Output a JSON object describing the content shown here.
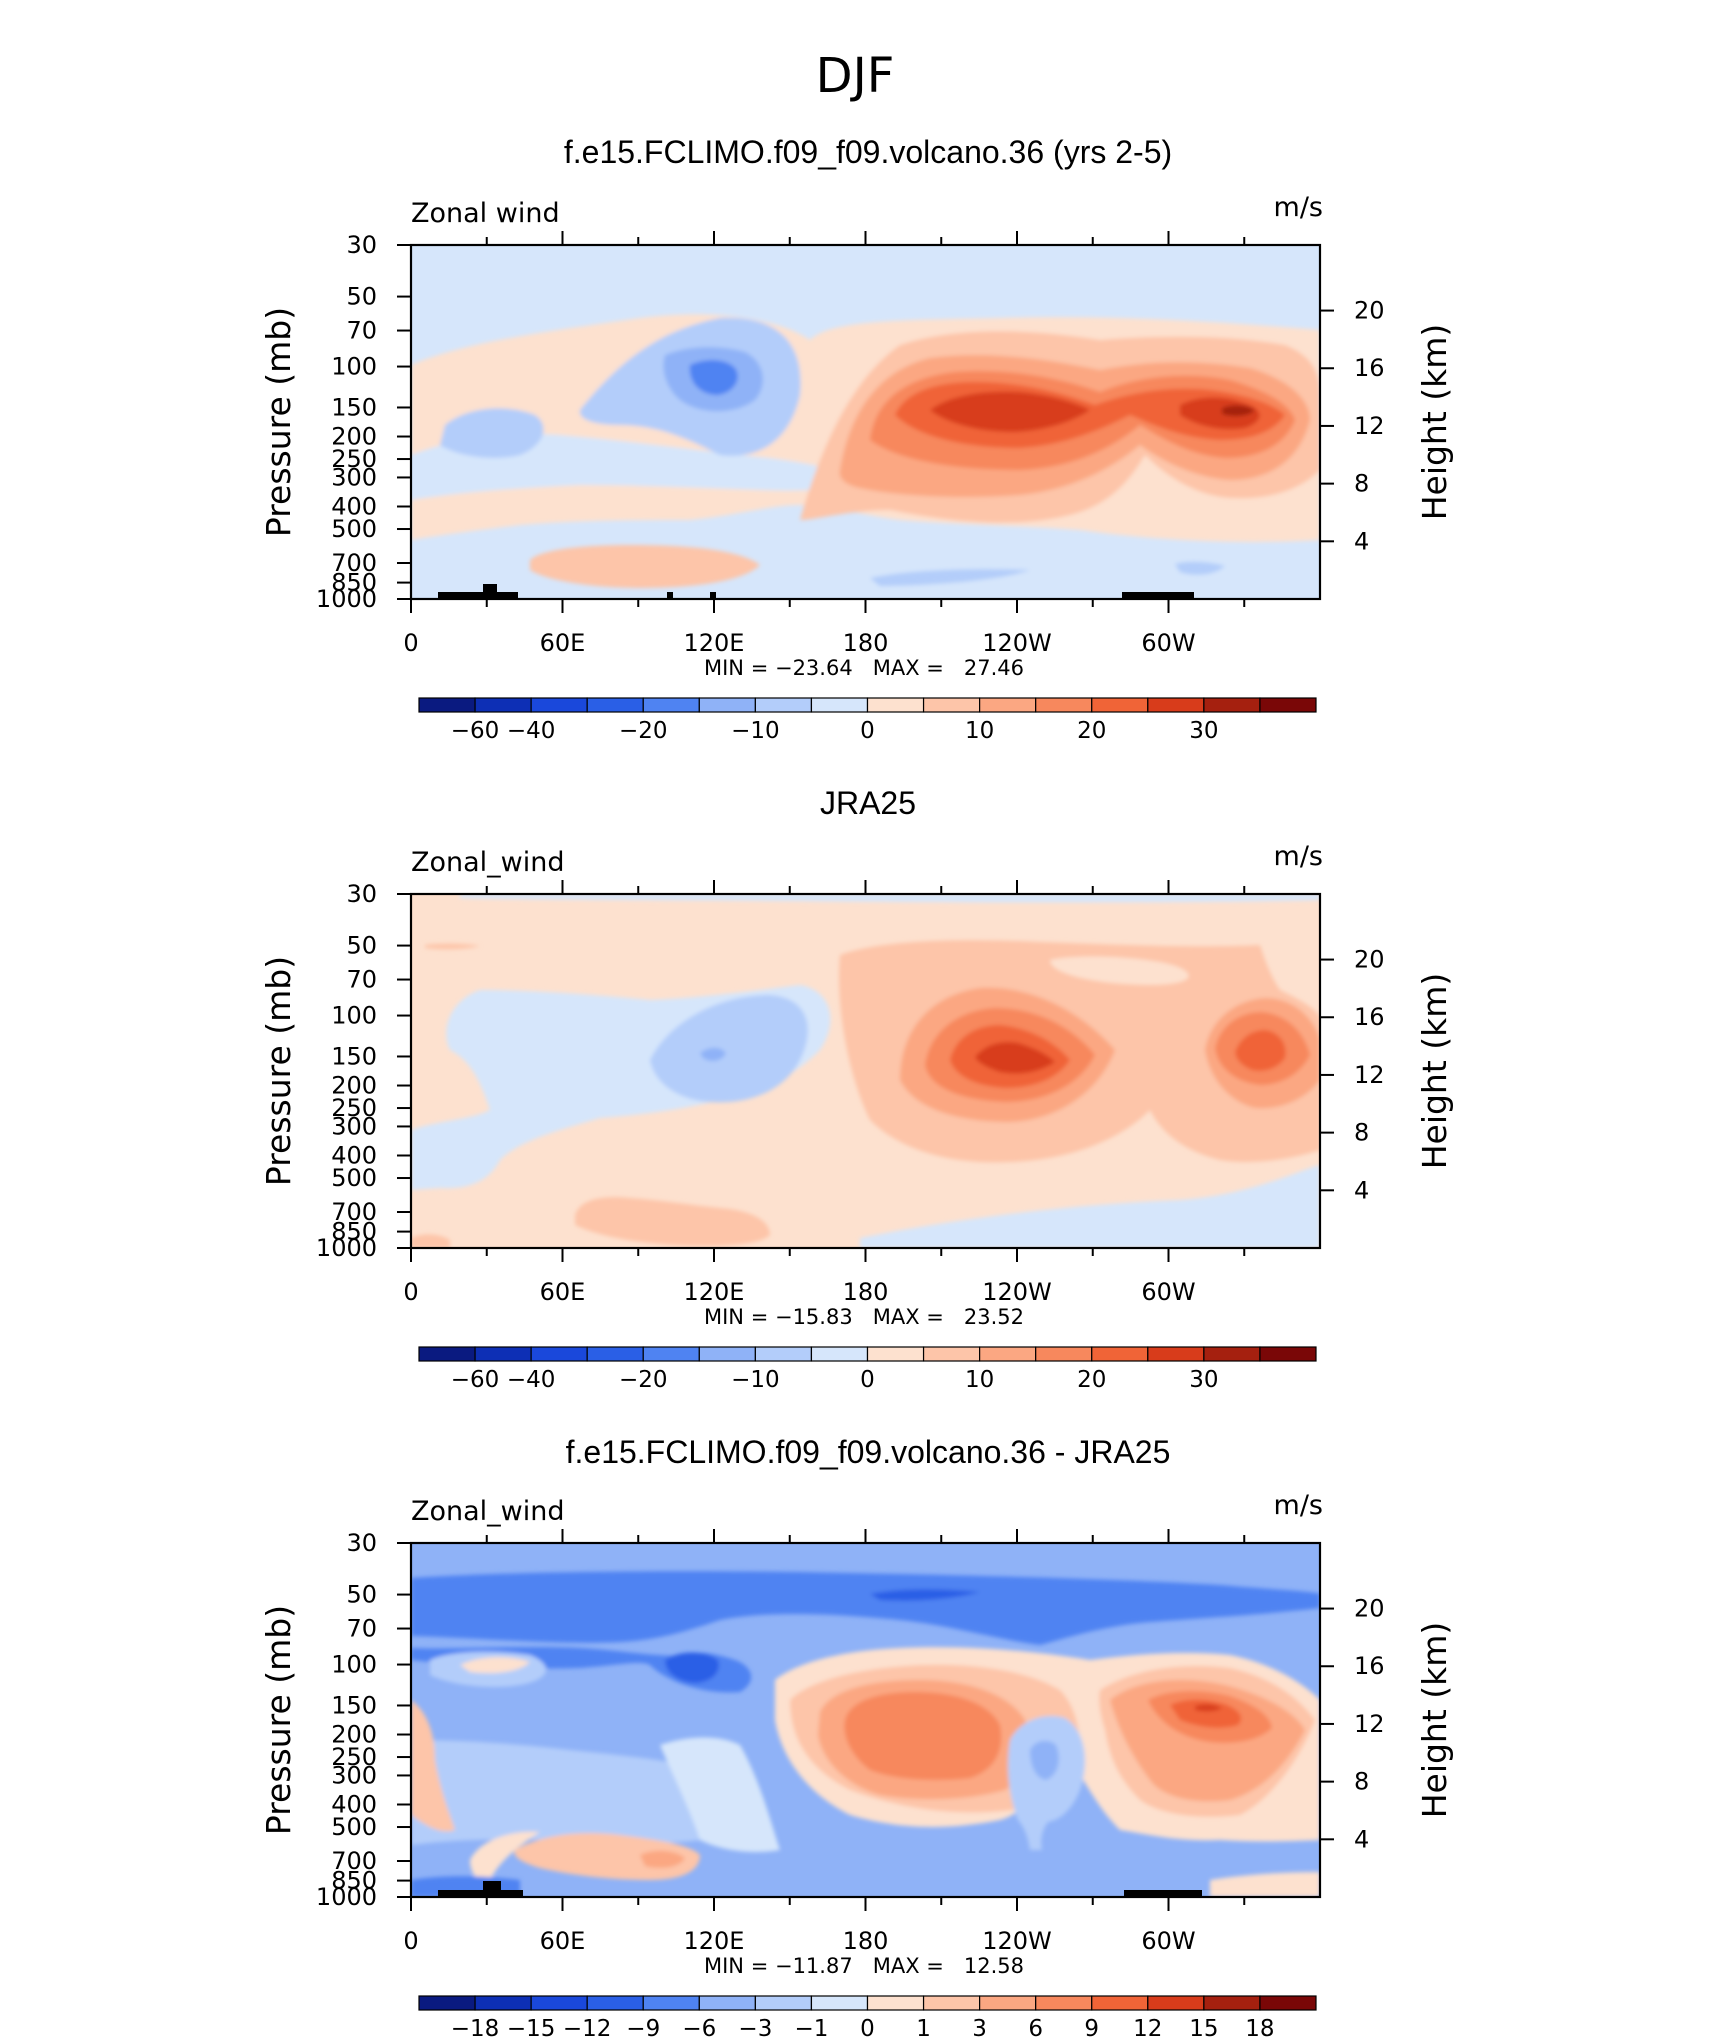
{
  "page_title": "DJF",
  "panels": [
    {
      "title": "f.e15.FCLIMO.f09_f09.volcano.36 (yrs 2-5)",
      "left_label": "Zonal wind",
      "right_label": "m/s",
      "ylabel_left": "Pressure (mb)",
      "ylabel_right": "Height (km)",
      "stats": "MIN = −23.64   MAX =   27.46",
      "has_terrain": true,
      "colorbar_labels": [
        "−60",
        "−40",
        "−20",
        "−10",
        "0",
        "10",
        "20",
        "30"
      ]
    },
    {
      "title": "JRA25",
      "left_label": "Zonal_wind",
      "right_label": "m/s",
      "ylabel_left": "Pressure (mb)",
      "ylabel_right": "Height (km)",
      "stats": "MIN = −15.83   MAX =   23.52",
      "has_terrain": false,
      "colorbar_labels": [
        "−60",
        "−40",
        "−20",
        "−10",
        "0",
        "10",
        "20",
        "30"
      ]
    },
    {
      "title": "f.e15.FCLIMO.f09_f09.volcano.36 - JRA25",
      "left_label": "Zonal_wind",
      "right_label": "m/s",
      "ylabel_left": "Pressure (mb)",
      "ylabel_right": "Height (km)",
      "stats": "MIN = −11.87   MAX =   12.58",
      "has_terrain": true,
      "colorbar_labels": [
        "−18",
        "−15",
        "−12",
        "−9",
        "−6",
        "−3",
        "−1",
        "0",
        "1",
        "3",
        "6",
        "9",
        "12",
        "15",
        "18"
      ]
    }
  ],
  "chart_data": [
    {
      "type": "heatmap",
      "title": "f.e15.FCLIMO.f09_f09.volcano.36 (yrs 2-5)",
      "variable": "Zonal wind",
      "units": "m/s",
      "x_ticks": [
        "0",
        "60E",
        "120E",
        "180",
        "120W",
        "60W"
      ],
      "y_ticks": [
        "30",
        "50",
        "70",
        "100",
        "150",
        "200",
        "250",
        "300",
        "400",
        "500",
        "700",
        "850",
        "1000"
      ],
      "y_right_ticks": [
        "4",
        "8",
        "12",
        "16",
        "20"
      ],
      "min": -23.64,
      "max": 27.46,
      "features": [
        {
          "name": "jet-pacific",
          "lon": 225,
          "p": 150,
          "value": 27
        },
        {
          "name": "jet-atlantic",
          "lon": 325,
          "p": 150,
          "value": 24
        },
        {
          "name": "easterly-min",
          "lon": 118,
          "p": 110,
          "value": -23
        }
      ]
    },
    {
      "type": "heatmap",
      "title": "JRA25",
      "variable": "Zonal_wind",
      "units": "m/s",
      "x_ticks": [
        "0",
        "60E",
        "120E",
        "180",
        "120W",
        "60W"
      ],
      "y_ticks": [
        "30",
        "50",
        "70",
        "100",
        "150",
        "200",
        "250",
        "300",
        "400",
        "500",
        "700",
        "850",
        "1000"
      ],
      "y_right_ticks": [
        "4",
        "8",
        "12",
        "16",
        "20"
      ],
      "min": -15.83,
      "max": 23.52,
      "features": [
        {
          "name": "jet-pacific",
          "lon": 230,
          "p": 160,
          "value": 23
        },
        {
          "name": "jet-atlantic",
          "lon": 333,
          "p": 160,
          "value": 18
        },
        {
          "name": "easterly-min",
          "lon": 118,
          "p": 160,
          "value": -15
        }
      ]
    },
    {
      "type": "heatmap",
      "title": "f.e15.FCLIMO.f09_f09.volcano.36 - JRA25",
      "variable": "Zonal_wind",
      "units": "m/s",
      "x_ticks": [
        "0",
        "60E",
        "120E",
        "180",
        "120W",
        "60W"
      ],
      "y_ticks": [
        "30",
        "50",
        "70",
        "100",
        "150",
        "200",
        "250",
        "300",
        "400",
        "500",
        "700",
        "850",
        "1000"
      ],
      "y_right_ticks": [
        "4",
        "8",
        "12",
        "16",
        "20"
      ],
      "min": -11.87,
      "max": 12.58,
      "features": [
        {
          "name": "positive-central-pacific",
          "lon": 190,
          "p": 180,
          "value": 8
        },
        {
          "name": "positive-atlantic",
          "lon": 315,
          "p": 150,
          "value": 12
        },
        {
          "name": "negative-stratosphere",
          "lon": 200,
          "p": 45,
          "value": -11
        }
      ]
    }
  ]
}
